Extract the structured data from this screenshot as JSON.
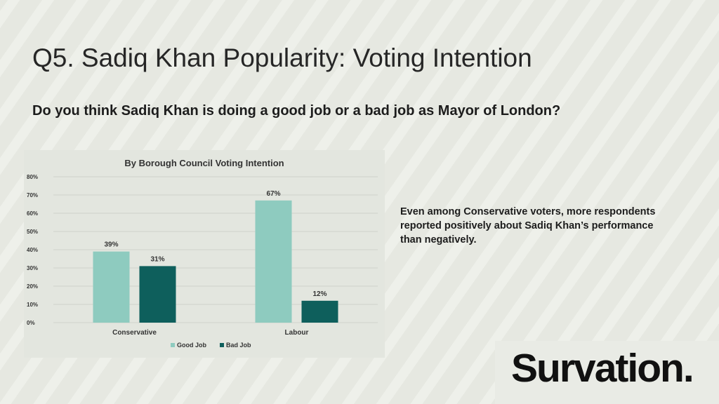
{
  "slide": {
    "title": "Q5. Sadiq Khan Popularity: Voting Intention",
    "question": "Do you think Sadiq Khan is doing a good job or a bad job as Mayor of London?",
    "note": "Even among Conservative voters, more respondents reported positively about Sadiq Khan’s performance than negatively.",
    "logo_text": "Survation."
  },
  "chart_data": {
    "type": "bar",
    "title": "By Borough Council Voting Intention",
    "categories": [
      "Conservative",
      "Labour"
    ],
    "series": [
      {
        "name": "Good Job",
        "values": [
          39,
          67
        ],
        "labels": [
          "39%",
          "67%"
        ],
        "color": "#8ecbbf"
      },
      {
        "name": "Bad Job",
        "values": [
          31,
          12
        ],
        "labels": [
          "31%",
          "12%"
        ],
        "color": "#0e5f5c"
      }
    ],
    "ylim": [
      0,
      80
    ],
    "yticks": [
      0,
      10,
      20,
      30,
      40,
      50,
      60,
      70,
      80
    ],
    "ytick_labels": [
      "0%",
      "10%",
      "20%",
      "30%",
      "40%",
      "50%",
      "60%",
      "70%",
      "80%"
    ],
    "xlabel": "",
    "ylabel": "",
    "grid": true,
    "legend_position": "bottom"
  }
}
